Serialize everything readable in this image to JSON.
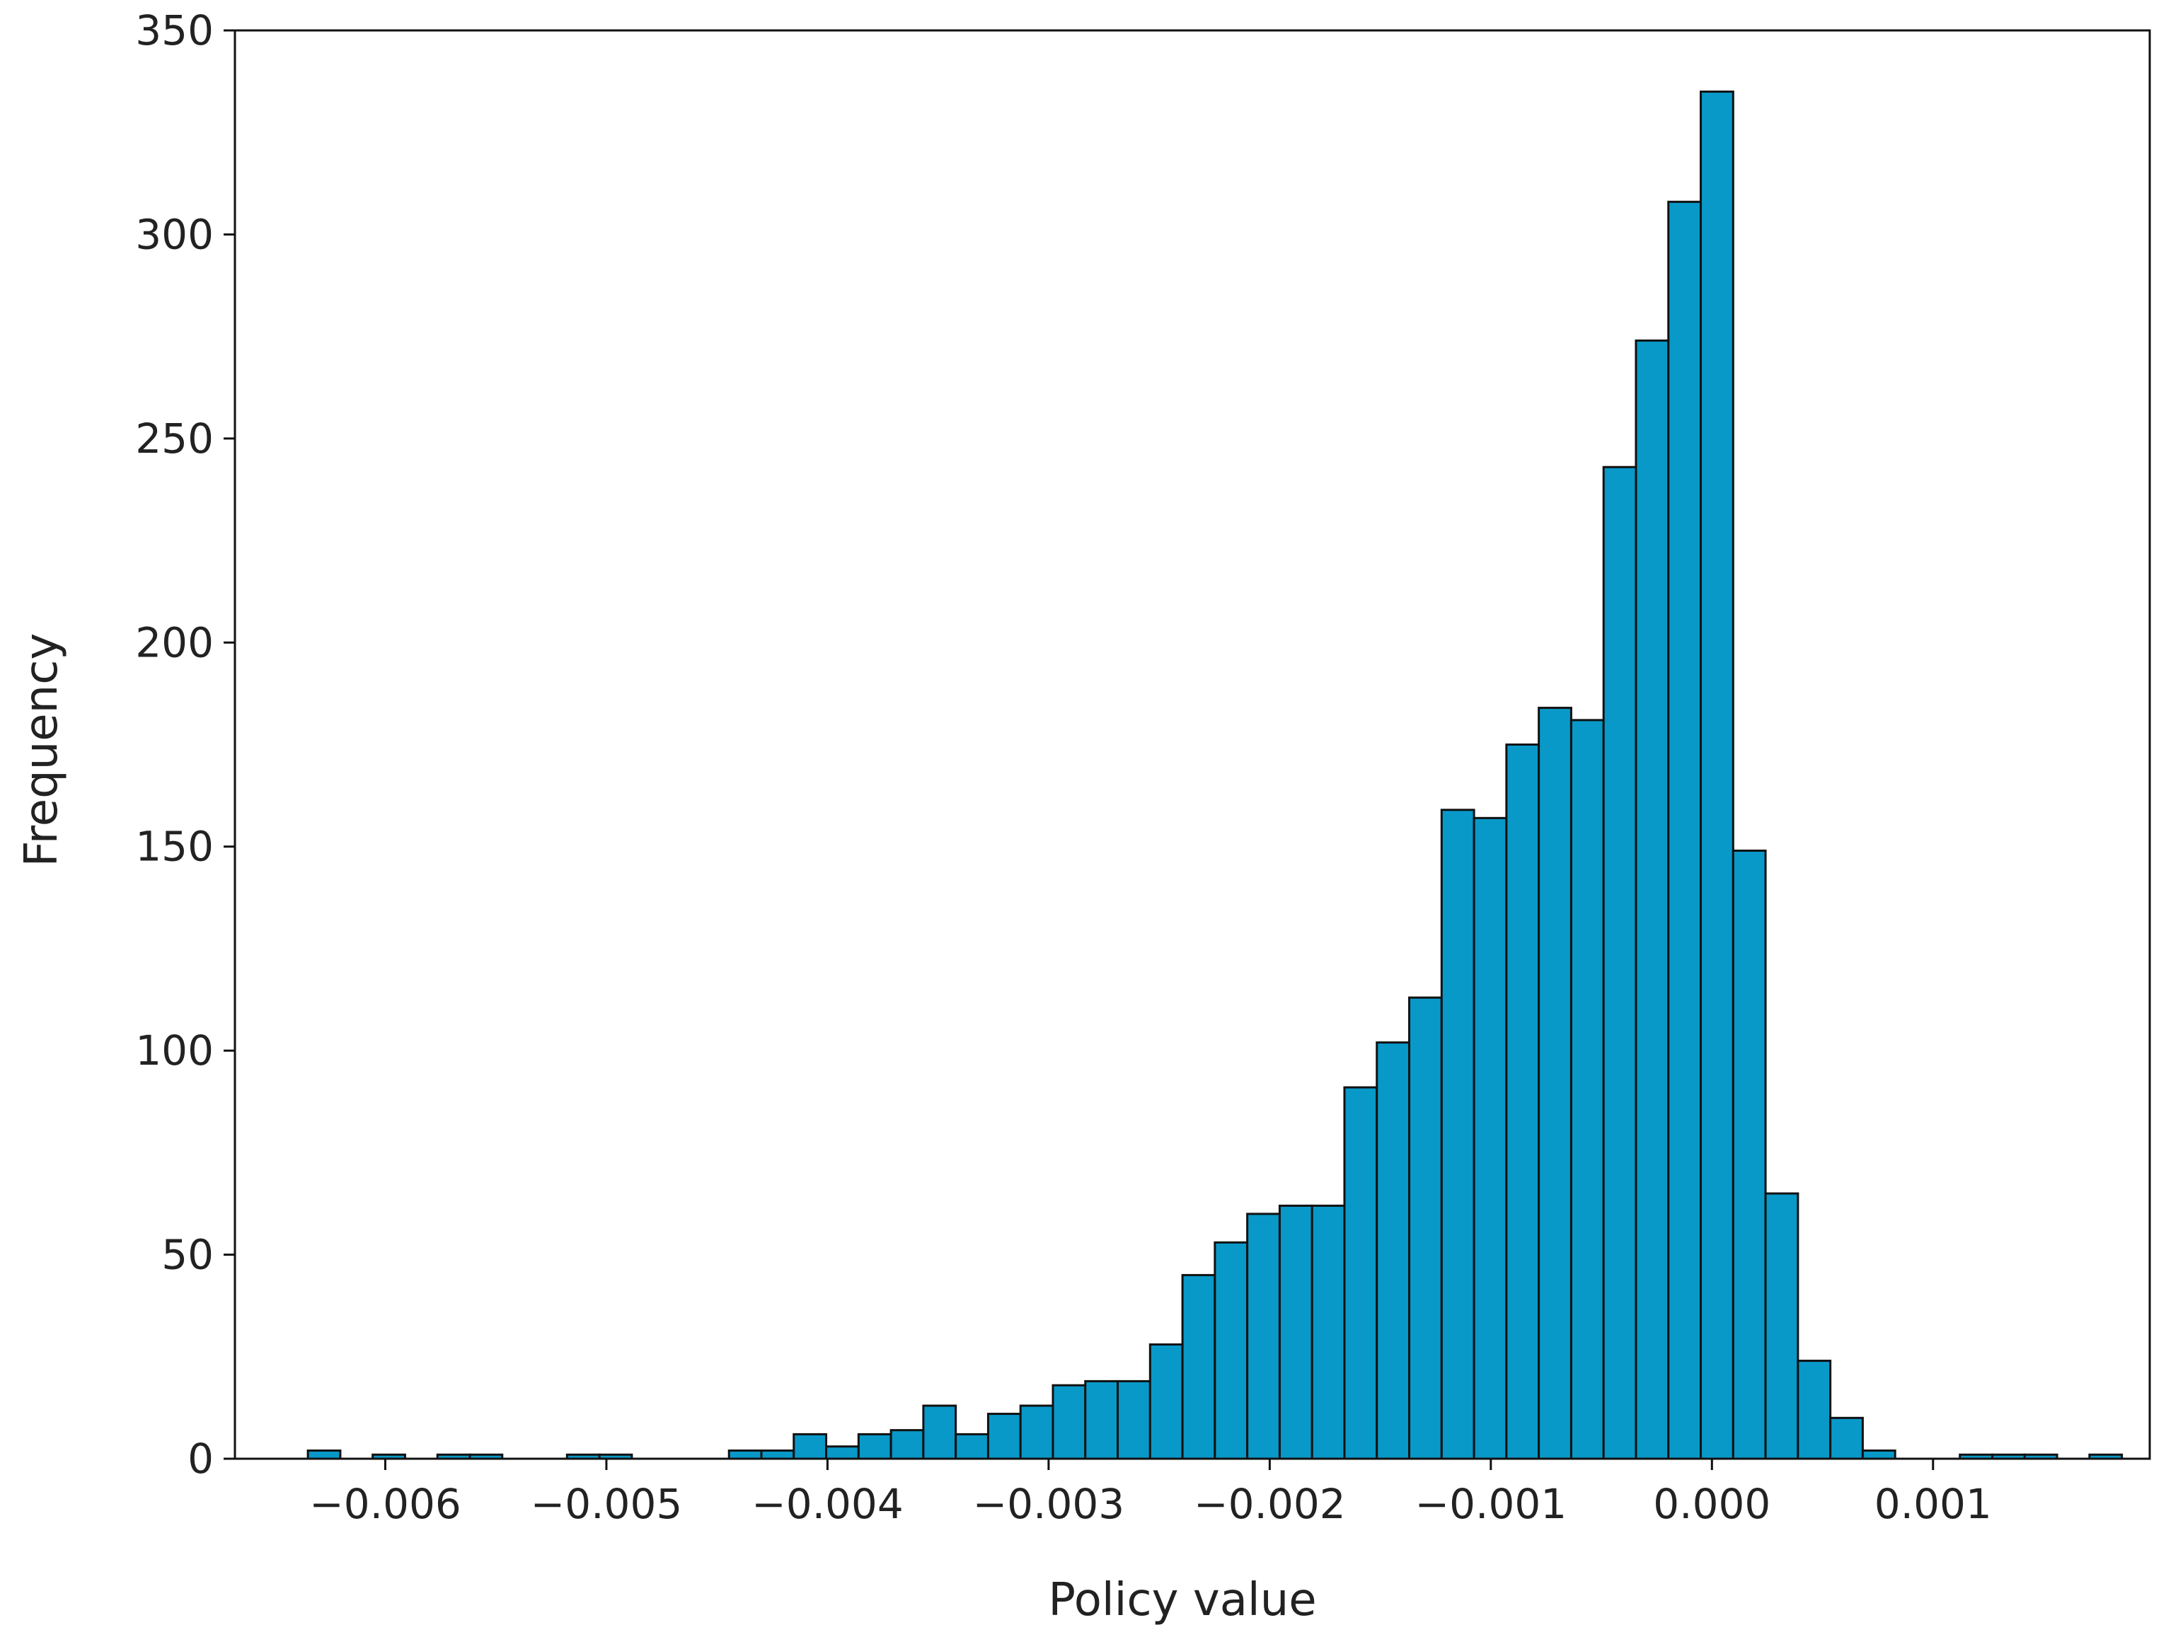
{
  "chart_data": {
    "type": "bar",
    "xlabel": "Policy value",
    "ylabel": "Frequency",
    "xlim": [
      -0.00668,
      0.00198
    ],
    "ylim": [
      0,
      350
    ],
    "x_ticks": [
      -0.006,
      -0.005,
      -0.004,
      -0.003,
      -0.002,
      -0.001,
      0.0,
      0.001
    ],
    "x_tick_labels": [
      "−0.006",
      "−0.005",
      "−0.004",
      "−0.003",
      "−0.002",
      "−0.001",
      "0.000",
      "0.001"
    ],
    "y_ticks": [
      0,
      50,
      100,
      150,
      200,
      250,
      300,
      350
    ],
    "y_tick_labels": [
      "0",
      "50",
      "100",
      "150",
      "200",
      "250",
      "300",
      "350"
    ],
    "bin_start": -0.00635,
    "bin_width": 0.0001465,
    "values": [
      2,
      0,
      1,
      0,
      1,
      1,
      0,
      0,
      1,
      1,
      0,
      0,
      0,
      2,
      2,
      6,
      3,
      6,
      7,
      13,
      6,
      11,
      13,
      18,
      19,
      19,
      28,
      45,
      53,
      60,
      62,
      62,
      91,
      102,
      113,
      159,
      157,
      175,
      184,
      181,
      243,
      274,
      308,
      335,
      149,
      65,
      24,
      10,
      2,
      0,
      0,
      1,
      1,
      1,
      0,
      1
    ],
    "bar_color": "#0899c9",
    "edge_color": "#111111",
    "grid": false,
    "legend": false
  }
}
